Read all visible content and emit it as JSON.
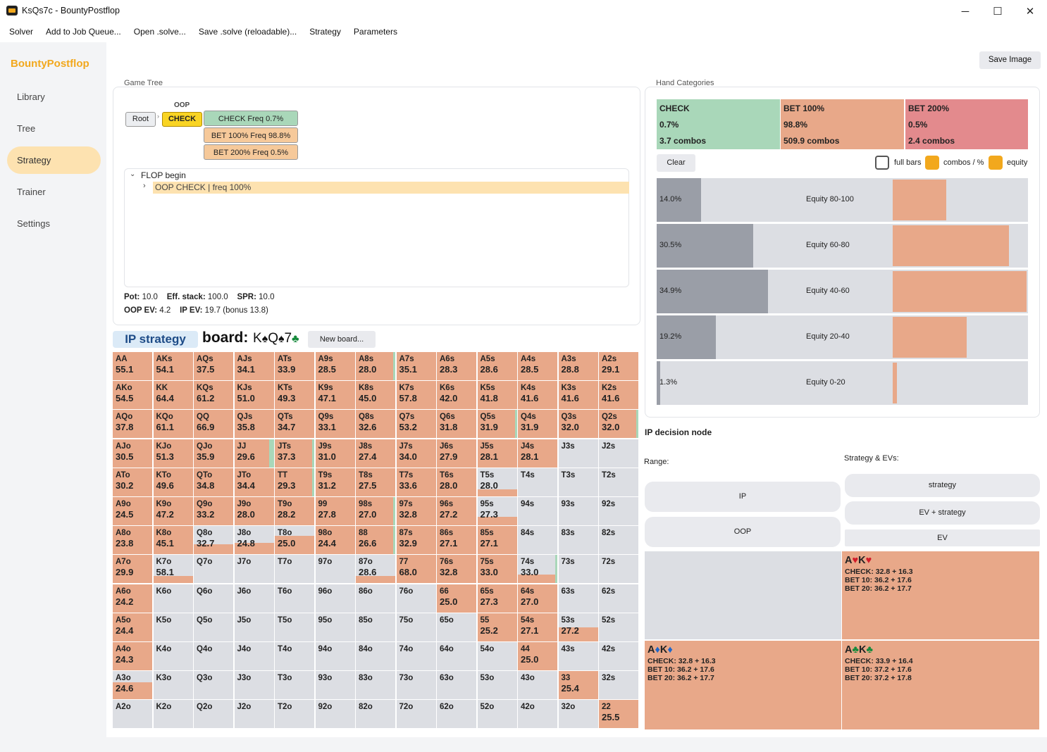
{
  "window": {
    "title": "KsQs7c - BountyPostflop",
    "minimize": "─",
    "maximize": "☐",
    "close": "✕"
  },
  "menu": [
    "Solver",
    "Add to Job Queue...",
    "Open .solve...",
    "Save .solve (reloadable)...",
    "Strategy",
    "Parameters"
  ],
  "sidebar": {
    "brand": "BountyPostflop",
    "items": [
      "Library",
      "Tree",
      "Strategy",
      "Trainer",
      "Settings"
    ],
    "active": "Strategy"
  },
  "toolbar": {
    "save_image": "Save Image"
  },
  "game_tree": {
    "title": "Game Tree",
    "oop_label": "OOP",
    "root": "Root",
    "check": "CHECK",
    "actions": [
      "CHECK  Freq 0.7%",
      "BET 100%  Freq 98.8%",
      "BET 200%  Freq 0.5%"
    ],
    "list": {
      "root": "FLOP begin",
      "child": "OOP CHECK | freq 100%"
    }
  },
  "info": {
    "pot_label": "Pot:",
    "pot": "10.0",
    "stack_label": "Eff. stack:",
    "stack": "100.0",
    "spr_label": "SPR:",
    "spr": "10.0",
    "oop_ev_label": "OOP EV:",
    "oop_ev": "4.2",
    "ip_ev_label": "IP EV:",
    "ip_ev": "19.7 (bonus 13.8)"
  },
  "strategy_header": {
    "label": "IP strategy",
    "board_label": "board:",
    "new_board": "New board..."
  },
  "board": [
    {
      "rank": "K",
      "suit": "♠"
    },
    {
      "rank": "Q",
      "suit": "♠"
    },
    {
      "rank": "7",
      "suit": "♣"
    }
  ],
  "colors": {
    "check": "#a9d7b9",
    "bet100": "#e8a889",
    "bet200": "#e38a8d",
    "empty": "#dcdee3",
    "accent": "#f2a81d",
    "dark_bar": "#9a9ea7"
  },
  "hand_categories": {
    "title": "Hand Categories",
    "cats": [
      {
        "name": "CHECK",
        "freq": "0.7%",
        "combos": "3.7 combos"
      },
      {
        "name": "BET 100%",
        "freq": "98.8%",
        "combos": "509.9 combos"
      },
      {
        "name": "BET 200%",
        "freq": "0.5%",
        "combos": "2.4 combos"
      }
    ],
    "clear": "Clear",
    "toggles": [
      "full bars",
      "combos / %",
      "equity"
    ]
  },
  "equity_buckets": [
    {
      "pct": "14.0%",
      "label": "Equity 80-100",
      "dark": 0.12,
      "bar": 0.4
    },
    {
      "pct": "30.5%",
      "label": "Equity 60-80",
      "dark": 0.26,
      "bar": 0.87
    },
    {
      "pct": "34.9%",
      "label": "Equity 40-60",
      "dark": 0.3,
      "bar": 1.0
    },
    {
      "pct": "19.2%",
      "label": "Equity 20-40",
      "dark": 0.16,
      "bar": 0.55
    },
    {
      "pct": "1.3%",
      "label": "Equity 0-20",
      "dark": 0.01,
      "bar": 0.03
    }
  ],
  "decision": {
    "title": "IP decision node",
    "range_label": "Range:",
    "strategy_label": "Strategy & EVs:",
    "range_buttons": [
      "IP",
      "OOP"
    ],
    "strategy_buttons": [
      "strategy",
      "EV + strategy",
      "EV"
    ]
  },
  "combos": [
    {
      "r1": "A",
      "s1": "♥",
      "r2": "K",
      "s2": "♥",
      "c1": "red",
      "c2": "red",
      "lines": [
        "CHECK: 32.8 + 16.3",
        "BET 10: 36.2 + 17.6",
        "BET 20: 36.2 + 17.7"
      ]
    },
    {
      "r1": "A",
      "s1": "♦",
      "r2": "K",
      "s2": "♦",
      "c1": "blue",
      "c2": "blue",
      "lines": [
        "CHECK: 32.8 + 16.3",
        "BET 10: 36.2 + 17.6",
        "BET 20: 36.2 + 17.7"
      ]
    },
    {
      "r1": "A",
      "s1": "♣",
      "r2": "K",
      "s2": "♣",
      "c1": "green",
      "c2": "green",
      "lines": [
        "CHECK: 33.9 + 16.4",
        "BET 10: 37.2 + 17.6",
        "BET 20: 37.2 + 17.8"
      ]
    }
  ],
  "grid": [
    [
      "AA",
      "55.1",
      1,
      0
    ],
    [
      "AKs",
      "54.1",
      1,
      0
    ],
    [
      "AQs",
      "37.5",
      1,
      0
    ],
    [
      "AJs",
      "34.1",
      1,
      0
    ],
    [
      "ATs",
      "33.9",
      1,
      0
    ],
    [
      "A9s",
      "28.5",
      1,
      0
    ],
    [
      "A8s",
      "28.0",
      1,
      0.05
    ],
    [
      "A7s",
      "35.1",
      1,
      0
    ],
    [
      "A6s",
      "28.3",
      1,
      0
    ],
    [
      "A5s",
      "28.6",
      1,
      0
    ],
    [
      "A4s",
      "28.5",
      1,
      0
    ],
    [
      "A3s",
      "28.8",
      1,
      0
    ],
    [
      "A2s",
      "29.1",
      1,
      0
    ],
    [
      "AKo",
      "54.5",
      1,
      0
    ],
    [
      "KK",
      "64.4",
      1,
      0
    ],
    [
      "KQs",
      "61.2",
      1,
      0
    ],
    [
      "KJs",
      "51.0",
      1,
      0
    ],
    [
      "KTs",
      "49.3",
      1,
      0
    ],
    [
      "K9s",
      "47.1",
      1,
      0
    ],
    [
      "K8s",
      "45.0",
      1,
      0
    ],
    [
      "K7s",
      "57.8",
      1,
      0
    ],
    [
      "K6s",
      "42.0",
      1,
      0
    ],
    [
      "K5s",
      "41.8",
      1,
      0
    ],
    [
      "K4s",
      "41.6",
      1,
      0
    ],
    [
      "K3s",
      "41.6",
      1,
      0
    ],
    [
      "K2s",
      "41.6",
      1,
      0
    ],
    [
      "AQo",
      "37.8",
      1,
      0
    ],
    [
      "KQo",
      "61.1",
      1,
      0
    ],
    [
      "QQ",
      "66.9",
      1,
      0
    ],
    [
      "QJs",
      "35.8",
      1,
      0
    ],
    [
      "QTs",
      "34.7",
      1,
      0
    ],
    [
      "Q9s",
      "33.1",
      1,
      0
    ],
    [
      "Q8s",
      "32.6",
      1,
      0
    ],
    [
      "Q7s",
      "53.2",
      1,
      0
    ],
    [
      "Q6s",
      "31.8",
      1,
      0
    ],
    [
      "Q5s",
      "31.9",
      1,
      0.03
    ],
    [
      "Q4s",
      "31.9",
      1,
      0
    ],
    [
      "Q3s",
      "32.0",
      1,
      0
    ],
    [
      "Q2s",
      "32.0",
      1,
      0.04
    ],
    [
      "AJo",
      "30.5",
      1,
      0
    ],
    [
      "KJo",
      "51.3",
      1,
      0
    ],
    [
      "QJo",
      "35.9",
      1,
      0
    ],
    [
      "JJ",
      "29.6",
      1,
      0.12
    ],
    [
      "JTs",
      "37.3",
      1,
      0.03
    ],
    [
      "J9s",
      "31.0",
      1,
      0
    ],
    [
      "J8s",
      "27.4",
      1,
      0
    ],
    [
      "J7s",
      "34.0",
      1,
      0
    ],
    [
      "J6s",
      "27.9",
      1,
      0
    ],
    [
      "J5s",
      "28.1",
      1,
      0
    ],
    [
      "J4s",
      "28.1",
      1,
      0
    ],
    [
      "J3s",
      "",
      0,
      0
    ],
    [
      "J2s",
      "",
      0,
      0
    ],
    [
      "ATo",
      "30.2",
      1,
      0
    ],
    [
      "KTo",
      "49.6",
      1,
      0
    ],
    [
      "QTo",
      "34.8",
      1,
      0
    ],
    [
      "JTo",
      "34.4",
      1,
      0
    ],
    [
      "TT",
      "29.3",
      1,
      0.05
    ],
    [
      "T9s",
      "31.2",
      1,
      0
    ],
    [
      "T8s",
      "27.5",
      1,
      0
    ],
    [
      "T7s",
      "33.6",
      1,
      0
    ],
    [
      "T6s",
      "28.0",
      1,
      0
    ],
    [
      "T5s",
      "28.0",
      0.25,
      0
    ],
    [
      "T4s",
      "",
      0,
      0
    ],
    [
      "T3s",
      "",
      0,
      0
    ],
    [
      "T2s",
      "",
      0,
      0
    ],
    [
      "A9o",
      "24.5",
      1,
      0
    ],
    [
      "K9o",
      "47.2",
      1,
      0
    ],
    [
      "Q9o",
      "33.2",
      1,
      0
    ],
    [
      "J9o",
      "28.0",
      1,
      0
    ],
    [
      "T9o",
      "28.2",
      1,
      0
    ],
    [
      "99",
      "27.8",
      1,
      0
    ],
    [
      "98s",
      "27.0",
      1,
      0.05
    ],
    [
      "97s",
      "32.8",
      1,
      0
    ],
    [
      "96s",
      "27.2",
      1,
      0
    ],
    [
      "95s",
      "27.3",
      0.3,
      0
    ],
    [
      "94s",
      "",
      0,
      0
    ],
    [
      "93s",
      "",
      0,
      0
    ],
    [
      "92s",
      "",
      0,
      0
    ],
    [
      "A8o",
      "23.8",
      1,
      0
    ],
    [
      "K8o",
      "45.1",
      1,
      0
    ],
    [
      "Q8o",
      "32.7",
      0.35,
      0
    ],
    [
      "J8o",
      "24.8",
      0.4,
      0
    ],
    [
      "T8o",
      "25.0",
      0.65,
      0
    ],
    [
      "98o",
      "24.4",
      1,
      0
    ],
    [
      "88",
      "26.6",
      1,
      0.05
    ],
    [
      "87s",
      "32.9",
      1,
      0
    ],
    [
      "86s",
      "27.1",
      1,
      0
    ],
    [
      "85s",
      "27.1",
      1,
      0
    ],
    [
      "84s",
      "",
      0,
      0
    ],
    [
      "83s",
      "",
      0,
      0
    ],
    [
      "82s",
      "",
      0,
      0
    ],
    [
      "A7o",
      "29.9",
      1,
      0
    ],
    [
      "K7o",
      "58.1",
      0.25,
      0
    ],
    [
      "Q7o",
      "",
      0,
      0
    ],
    [
      "J7o",
      "",
      0,
      0
    ],
    [
      "T7o",
      "",
      0,
      0
    ],
    [
      "97o",
      "",
      0,
      0
    ],
    [
      "87o",
      "28.6",
      0.25,
      0
    ],
    [
      "77",
      "68.0",
      1,
      0
    ],
    [
      "76s",
      "32.8",
      1,
      0
    ],
    [
      "75s",
      "33.0",
      1,
      0
    ],
    [
      "74s",
      "33.0",
      0.3,
      0.05
    ],
    [
      "73s",
      "",
      0,
      0
    ],
    [
      "72s",
      "",
      0,
      0
    ],
    [
      "A6o",
      "24.2",
      1,
      0
    ],
    [
      "K6o",
      "",
      0,
      0
    ],
    [
      "Q6o",
      "",
      0,
      0
    ],
    [
      "J6o",
      "",
      0,
      0
    ],
    [
      "T6o",
      "",
      0,
      0
    ],
    [
      "96o",
      "",
      0,
      0
    ],
    [
      "86o",
      "",
      0,
      0
    ],
    [
      "76o",
      "",
      0,
      0
    ],
    [
      "66",
      "25.0",
      1,
      0
    ],
    [
      "65s",
      "27.3",
      1,
      0
    ],
    [
      "64s",
      "27.0",
      1,
      0
    ],
    [
      "63s",
      "",
      0,
      0
    ],
    [
      "62s",
      "",
      0,
      0
    ],
    [
      "A5o",
      "24.4",
      1,
      0
    ],
    [
      "K5o",
      "",
      0,
      0
    ],
    [
      "Q5o",
      "",
      0,
      0
    ],
    [
      "J5o",
      "",
      0,
      0
    ],
    [
      "T5o",
      "",
      0,
      0
    ],
    [
      "95o",
      "",
      0,
      0
    ],
    [
      "85o",
      "",
      0,
      0
    ],
    [
      "75o",
      "",
      0,
      0
    ],
    [
      "65o",
      "",
      0,
      0
    ],
    [
      "55",
      "25.2",
      1,
      0
    ],
    [
      "54s",
      "27.1",
      1,
      0
    ],
    [
      "53s",
      "27.2",
      0.5,
      0
    ],
    [
      "52s",
      "",
      0,
      0
    ],
    [
      "A4o",
      "24.3",
      1,
      0
    ],
    [
      "K4o",
      "",
      0,
      0
    ],
    [
      "Q4o",
      "",
      0,
      0
    ],
    [
      "J4o",
      "",
      0,
      0
    ],
    [
      "T4o",
      "",
      0,
      0
    ],
    [
      "94o",
      "",
      0,
      0
    ],
    [
      "84o",
      "",
      0,
      0
    ],
    [
      "74o",
      "",
      0,
      0
    ],
    [
      "64o",
      "",
      0,
      0
    ],
    [
      "54o",
      "",
      0,
      0
    ],
    [
      "44",
      "25.0",
      1,
      0
    ],
    [
      "43s",
      "",
      0,
      0
    ],
    [
      "42s",
      "",
      0,
      0
    ],
    [
      "A3o",
      "24.6",
      0.6,
      0
    ],
    [
      "K3o",
      "",
      0,
      0
    ],
    [
      "Q3o",
      "",
      0,
      0
    ],
    [
      "J3o",
      "",
      0,
      0
    ],
    [
      "T3o",
      "",
      0,
      0
    ],
    [
      "93o",
      "",
      0,
      0
    ],
    [
      "83o",
      "",
      0,
      0
    ],
    [
      "73o",
      "",
      0,
      0
    ],
    [
      "63o",
      "",
      0,
      0
    ],
    [
      "53o",
      "",
      0,
      0
    ],
    [
      "43o",
      "",
      0,
      0
    ],
    [
      "33",
      "25.4",
      1,
      0
    ],
    [
      "32s",
      "",
      0,
      0
    ],
    [
      "A2o",
      "",
      0,
      0
    ],
    [
      "K2o",
      "",
      0,
      0
    ],
    [
      "Q2o",
      "",
      0,
      0
    ],
    [
      "J2o",
      "",
      0,
      0
    ],
    [
      "T2o",
      "",
      0,
      0
    ],
    [
      "92o",
      "",
      0,
      0
    ],
    [
      "82o",
      "",
      0,
      0
    ],
    [
      "72o",
      "",
      0,
      0
    ],
    [
      "62o",
      "",
      0,
      0
    ],
    [
      "52o",
      "",
      0,
      0
    ],
    [
      "42o",
      "",
      0,
      0
    ],
    [
      "32o",
      "",
      0,
      0
    ],
    [
      "22",
      "25.5",
      1,
      0
    ]
  ]
}
